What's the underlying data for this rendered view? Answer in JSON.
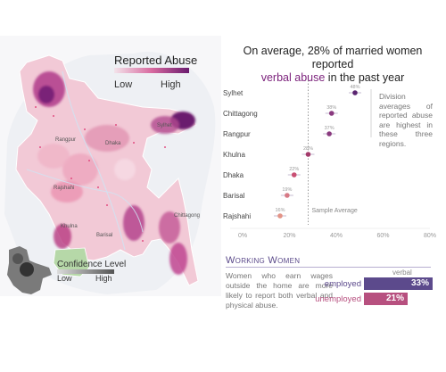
{
  "map": {
    "legend_title": "Reported Abuse",
    "legend_low": "Low",
    "legend_high": "High",
    "colors": {
      "low": "#f3e3ea",
      "high": "#6a1a6e"
    },
    "confidence_title": "Confidence Level",
    "confidence_low": "Low",
    "confidence_high": "High",
    "place_labels": [
      "Rangpur",
      "Sylhet",
      "Dhaka",
      "Rajshahi",
      "Khulna",
      "Barisal",
      "Chittagong"
    ]
  },
  "headline": {
    "line1": "On average, 28% of married women reported",
    "highlight": "verbal abuse",
    "line2_rest": " in the past year"
  },
  "side_note": "Division averages of reported abuse are highest in these three regions.",
  "chart_data": {
    "type": "scatter",
    "categories": [
      "Sylhet",
      "Chittagong",
      "Rangpur",
      "Khulna",
      "Dhaka",
      "Barisal",
      "Rajshahi"
    ],
    "values": [
      48,
      38,
      37,
      28,
      22,
      19,
      16
    ],
    "point_labels": [
      "48%",
      "38%",
      "37%",
      "28%",
      "22%",
      "19%",
      "16%"
    ],
    "xlim": [
      0,
      80
    ],
    "xticks": [
      "0%",
      "20%",
      "40%",
      "60%",
      "80%"
    ],
    "reference_value": 28,
    "reference_label": "Sample Average",
    "marker_colors": [
      "#5a2470",
      "#8a3a7f",
      "#8a3a7f",
      "#a33a6a",
      "#c94f73",
      "#d77a86",
      "#e39487"
    ]
  },
  "working_women": {
    "title": "Working Women",
    "text": "Women who earn wages outside the home are more likely to report both verbal and physical abuse.",
    "verbal_label": "verbal",
    "bars": [
      {
        "label": "employed",
        "value": 33,
        "display": "33%",
        "color": "#5c4a8c"
      },
      {
        "label": "unemployed",
        "value": 21,
        "display": "21%",
        "color": "#b7507f"
      }
    ]
  }
}
